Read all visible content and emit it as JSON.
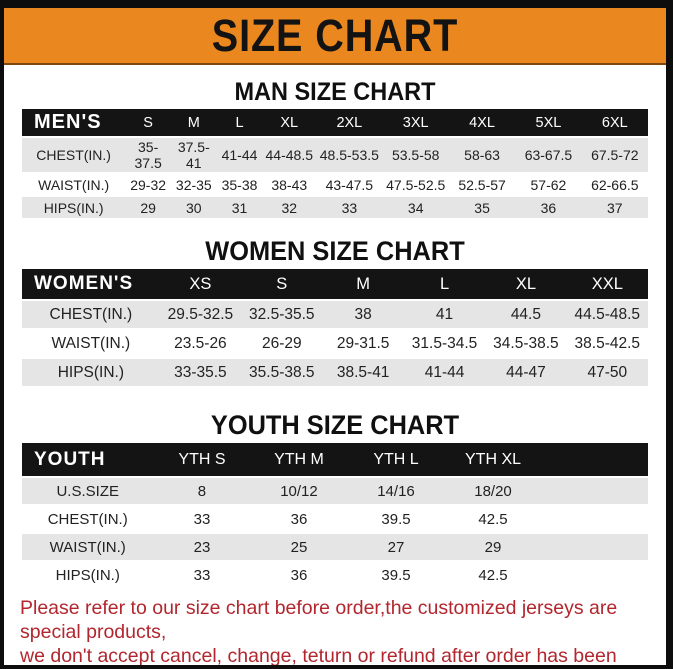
{
  "banner": {
    "title": "SIZE CHART"
  },
  "colors": {
    "banner_orange": "#EA871E",
    "banner_text": "#131313",
    "header_black": "#141414",
    "row_gray": "#E5E5E5",
    "footer_red": "#B2262E"
  },
  "sections": [
    {
      "id": "men",
      "heading": "MAN SIZE CHART",
      "columns": [
        "MEN'S",
        "S",
        "M",
        "L",
        "XL",
        "2XL",
        "3XL",
        "4XL",
        "5XL",
        "6XL"
      ],
      "rows": [
        [
          "CHEST(IN.)",
          "35-37.5",
          "37.5-41",
          "41-44",
          "44-48.5",
          "48.5-53.5",
          "53.5-58",
          "58-63",
          "63-67.5",
          "67.5-72"
        ],
        [
          "WAIST(IN.)",
          "29-32",
          "32-35",
          "35-38",
          "38-43",
          "43-47.5",
          "47.5-52.5",
          "52.5-57",
          "57-62",
          "62-66.5"
        ],
        [
          "HIPS(IN.)",
          "29",
          "30",
          "31",
          "32",
          "33",
          "34",
          "35",
          "36",
          "37"
        ]
      ]
    },
    {
      "id": "women",
      "heading": "WOMEN SIZE CHART",
      "columns": [
        "WOMEN'S",
        "XS",
        "S",
        "M",
        "L",
        "XL",
        "XXL"
      ],
      "rows": [
        [
          "CHEST(IN.)",
          "29.5-32.5",
          "32.5-35.5",
          "38",
          "41",
          "44.5",
          "44.5-48.5"
        ],
        [
          "WAIST(IN.)",
          "23.5-26",
          "26-29",
          "29-31.5",
          "31.5-34.5",
          "34.5-38.5",
          "38.5-42.5"
        ],
        [
          "HIPS(IN.)",
          "33-35.5",
          "35.5-38.5",
          "38.5-41",
          "41-44",
          "44-47",
          "47-50"
        ]
      ]
    },
    {
      "id": "youth",
      "heading": "YOUTH SIZE CHART",
      "columns": [
        "YOUTH",
        "YTH S",
        "YTH M",
        "YTH L",
        "YTH XL"
      ],
      "rows": [
        [
          "U.S.SIZE",
          "8",
          "10/12",
          "14/16",
          "18/20"
        ],
        [
          "CHEST(IN.)",
          "33",
          "36",
          "39.5",
          "42.5"
        ],
        [
          "WAIST(IN.)",
          "23",
          "25",
          "27",
          "29"
        ],
        [
          "HIPS(IN.)",
          "33",
          "36",
          "39.5",
          "42.5"
        ]
      ]
    }
  ],
  "footer": {
    "line1": "Please refer to our size chart before order,the customized jerseys are special products,",
    "line2": "we don't accept cancel, change, teturn or refund after order has been placed!"
  }
}
